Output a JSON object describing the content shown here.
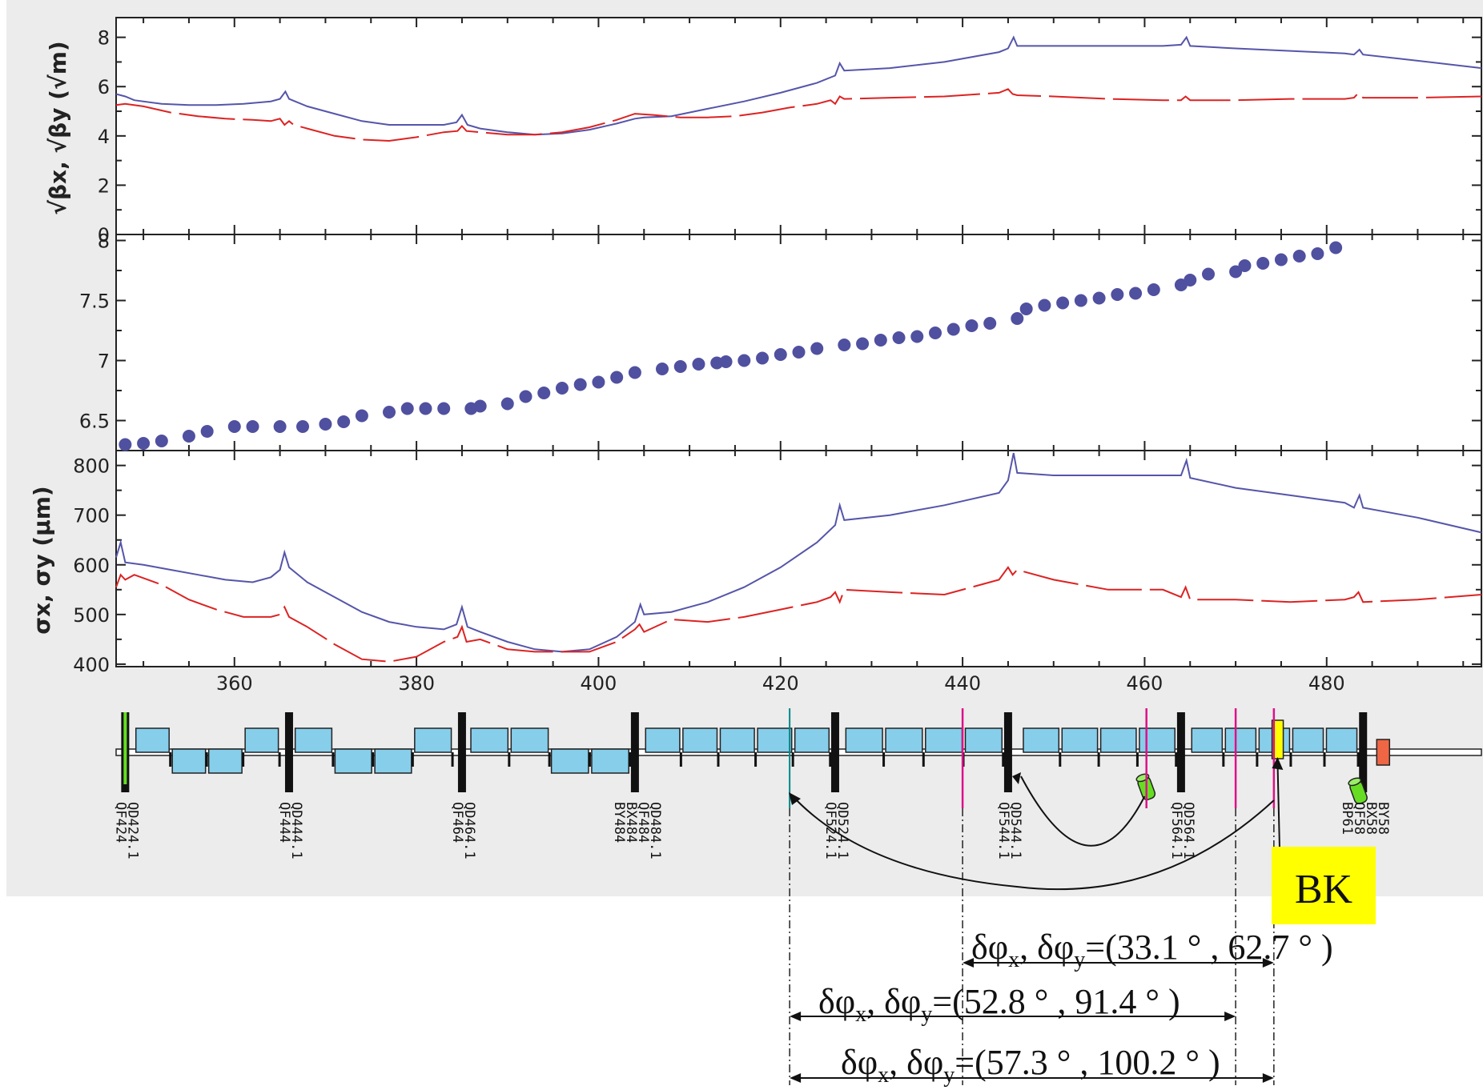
{
  "chart_data": [
    {
      "type": "line",
      "panel": "beta",
      "ylabel": "√βx, √βy (√m)",
      "yticks": [
        0,
        2,
        4,
        6,
        8
      ],
      "ylim": [
        0,
        8.8
      ],
      "xlim": [
        347,
        497
      ],
      "series": [
        {
          "color": "#5555aa",
          "dash": "solid",
          "x": [
            347,
            348,
            349,
            352,
            355,
            358,
            361,
            364,
            365,
            365.6,
            366,
            368,
            371,
            374,
            377,
            380,
            383,
            384.4,
            385,
            385.6,
            387,
            390,
            393,
            396,
            399,
            402,
            404,
            405,
            408,
            412,
            416,
            420,
            424,
            426,
            426.5,
            427,
            432,
            438,
            444,
            445,
            445.6,
            446,
            450,
            456,
            462,
            464,
            464.6,
            465,
            470,
            476,
            482,
            483,
            483.6,
            484,
            490,
            497
          ],
          "y": [
            5.7,
            5.6,
            5.45,
            5.3,
            5.25,
            5.25,
            5.3,
            5.4,
            5.5,
            5.8,
            5.5,
            5.2,
            4.9,
            4.6,
            4.45,
            4.45,
            4.45,
            4.55,
            4.85,
            4.45,
            4.3,
            4.15,
            4.05,
            4.1,
            4.25,
            4.5,
            4.7,
            4.75,
            4.8,
            5.1,
            5.4,
            5.75,
            6.15,
            6.45,
            6.95,
            6.65,
            6.75,
            7.0,
            7.4,
            7.55,
            8.0,
            7.65,
            7.65,
            7.65,
            7.65,
            7.7,
            8.0,
            7.65,
            7.55,
            7.45,
            7.35,
            7.3,
            7.5,
            7.3,
            7.05,
            6.75
          ]
        },
        {
          "color": "#dd2222",
          "dash": "long",
          "x": [
            347,
            348,
            350,
            353,
            356,
            359,
            362,
            364,
            365,
            365.5,
            366,
            366.5,
            368,
            371,
            374,
            377,
            380,
            383,
            384.5,
            385,
            385.5,
            387,
            390,
            393,
            396,
            399,
            402,
            404,
            406,
            409,
            412,
            415,
            418,
            421,
            424,
            425.5,
            426,
            426.5,
            427,
            432,
            438,
            444,
            445,
            445.5,
            446,
            450,
            456,
            462,
            464,
            464.5,
            465,
            470,
            476,
            482,
            483,
            483.5,
            484,
            490,
            497
          ],
          "y": [
            5.25,
            5.3,
            5.2,
            4.95,
            4.8,
            4.7,
            4.65,
            4.6,
            4.7,
            4.45,
            4.6,
            4.45,
            4.3,
            4.0,
            3.85,
            3.8,
            3.95,
            4.15,
            4.2,
            4.4,
            4.2,
            4.15,
            4.05,
            4.05,
            4.15,
            4.35,
            4.65,
            4.9,
            4.85,
            4.75,
            4.75,
            4.8,
            4.95,
            5.15,
            5.3,
            5.45,
            5.3,
            5.6,
            5.5,
            5.55,
            5.6,
            5.75,
            5.9,
            5.7,
            5.65,
            5.6,
            5.5,
            5.45,
            5.45,
            5.6,
            5.45,
            5.45,
            5.5,
            5.5,
            5.55,
            5.75,
            5.55,
            5.55,
            5.6
          ]
        }
      ]
    },
    {
      "type": "scatter",
      "panel": "phase",
      "yticks": [
        6.5,
        7,
        7.5,
        8
      ],
      "ylim": [
        6.25,
        8.05
      ],
      "xlim": [
        347,
        497
      ],
      "series": [
        {
          "color": "#5050a0",
          "x": [
            348,
            350,
            352,
            355,
            357,
            360,
            362,
            365,
            367.5,
            370,
            372,
            374,
            377,
            379,
            381,
            383,
            386,
            387,
            390,
            392,
            394,
            396,
            398,
            400,
            402,
            404,
            407,
            409,
            411,
            413,
            414,
            416,
            418,
            420,
            422,
            424,
            427,
            429,
            431,
            433,
            435,
            437,
            439,
            441,
            443,
            446,
            447,
            449,
            451,
            453,
            455,
            457,
            459,
            461,
            464,
            465,
            467,
            470,
            471,
            473,
            475,
            477,
            479,
            481
          ],
          "y": [
            6.3,
            6.31,
            6.33,
            6.37,
            6.41,
            6.45,
            6.45,
            6.45,
            6.45,
            6.47,
            6.49,
            6.54,
            6.57,
            6.6,
            6.6,
            6.6,
            6.6,
            6.62,
            6.64,
            6.7,
            6.73,
            6.77,
            6.8,
            6.82,
            6.86,
            6.9,
            6.93,
            6.95,
            6.97,
            6.98,
            6.99,
            7.0,
            7.02,
            7.05,
            7.07,
            7.1,
            7.13,
            7.14,
            7.17,
            7.19,
            7.2,
            7.23,
            7.26,
            7.29,
            7.31,
            7.35,
            7.43,
            7.46,
            7.48,
            7.5,
            7.52,
            7.55,
            7.56,
            7.59,
            7.63,
            7.67,
            7.72,
            7.74,
            7.79,
            7.81,
            7.84,
            7.87,
            7.89,
            7.94
          ]
        }
      ]
    },
    {
      "type": "line",
      "panel": "sigma",
      "ylabel": "σx, σy (μm)",
      "yticks": [
        400,
        500,
        600,
        700,
        800
      ],
      "ylim": [
        395,
        830
      ],
      "xlim": [
        347,
        497
      ],
      "xticks": [
        360,
        380,
        400,
        420,
        440,
        460,
        480
      ],
      "series": [
        {
          "color": "#5555aa",
          "dash": "solid",
          "x": [
            347,
            347.5,
            348,
            350,
            353,
            356,
            359,
            362,
            364,
            365,
            365.5,
            366,
            368,
            371,
            374,
            377,
            380,
            383,
            384.4,
            385,
            385.6,
            387,
            390,
            393,
            396,
            399,
            402,
            404,
            404.6,
            405,
            408,
            412,
            416,
            420,
            424,
            426,
            426.5,
            427,
            432,
            438,
            444,
            445,
            445.6,
            446,
            450,
            456,
            462,
            464,
            464.6,
            465,
            470,
            476,
            482,
            483,
            483.6,
            484,
            490,
            497
          ],
          "y": [
            615,
            645,
            605,
            600,
            590,
            580,
            570,
            565,
            575,
            590,
            625,
            595,
            565,
            535,
            505,
            485,
            475,
            470,
            480,
            515,
            475,
            465,
            445,
            430,
            425,
            430,
            455,
            485,
            520,
            500,
            505,
            525,
            555,
            595,
            645,
            680,
            720,
            690,
            700,
            720,
            745,
            770,
            825,
            785,
            780,
            780,
            780,
            780,
            810,
            775,
            755,
            740,
            725,
            715,
            740,
            715,
            695,
            665
          ]
        },
        {
          "color": "#dd2222",
          "dash": "long",
          "x": [
            347,
            347.5,
            348,
            349,
            352,
            355,
            358,
            361,
            364,
            365,
            365.5,
            366,
            368,
            371,
            374,
            377,
            380,
            383,
            384.5,
            385,
            385.5,
            387,
            390,
            393,
            396,
            399,
            402,
            404,
            404.5,
            405,
            408,
            412,
            416,
            420,
            424,
            425.5,
            426,
            426.5,
            427,
            432,
            438,
            444,
            445,
            445.5,
            446,
            450,
            456,
            462,
            464,
            464.5,
            465,
            470,
            476,
            482,
            483,
            483.5,
            484,
            490,
            497
          ],
          "y": [
            555,
            580,
            570,
            580,
            560,
            530,
            510,
            495,
            495,
            500,
            515,
            495,
            475,
            440,
            410,
            405,
            415,
            445,
            455,
            475,
            445,
            450,
            430,
            425,
            425,
            425,
            445,
            470,
            480,
            465,
            490,
            485,
            495,
            510,
            525,
            535,
            545,
            525,
            550,
            545,
            540,
            570,
            595,
            580,
            590,
            570,
            550,
            550,
            535,
            555,
            530,
            530,
            525,
            530,
            535,
            545,
            525,
            530,
            540
          ]
        }
      ]
    }
  ],
  "xaxis": {
    "ticks": [
      360,
      380,
      400,
      420,
      440,
      460,
      480
    ]
  },
  "lattice": {
    "labels": [
      {
        "x": 348,
        "lines": [
          "QF424",
          "QD424.1"
        ]
      },
      {
        "x": 366,
        "lines": [
          "QF444",
          "QD444.1"
        ]
      },
      {
        "x": 385,
        "lines": [
          "QF464",
          "QD464.1"
        ]
      },
      {
        "x": 404,
        "lines": [
          "BY484",
          "BX484",
          "QF484",
          "QD484.1"
        ]
      },
      {
        "x": 426,
        "lines": [
          "QF524.1",
          "QD524.1"
        ]
      },
      {
        "x": 445,
        "lines": [
          "QF544.1",
          "QD544.1"
        ]
      },
      {
        "x": 464,
        "lines": [
          "QF564.1",
          "QD564.1"
        ]
      },
      {
        "x": 484,
        "lines": [
          "BP61",
          "QF58",
          "BX58",
          "BY58"
        ]
      }
    ]
  },
  "annotations": {
    "bk_label": "BK",
    "phase1": {
      "prefix": "δφ",
      "sub_x": "x",
      "mid": ", δφ",
      "sub_y": "y",
      "value": "=(33.1 ° , 62.7 ° )"
    },
    "phase2": {
      "prefix": "δφ",
      "sub_x": "x",
      "mid": ", δφ",
      "sub_y": "y",
      "value": "=(52.8 ° , 91.4 ° )"
    },
    "phase3": {
      "prefix": "δφ",
      "sub_x": "x",
      "mid": ", δφ",
      "sub_y": "y",
      "value": "=(57.3 ° , 100.2 ° )"
    }
  },
  "colors": {
    "panel_bg": "#ececec",
    "plot_bg": "#ffffff",
    "quad": "#87ceeb",
    "marker": "#dd1188",
    "bk_fill": "#ffff00",
    "bpm": "#66dd22",
    "teal": "#008888"
  }
}
